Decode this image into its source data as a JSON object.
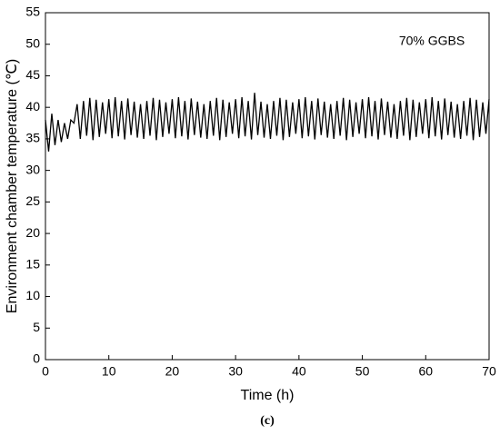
{
  "chart_data": {
    "type": "line",
    "caption": "(c)",
    "annotation": "70% GGBS",
    "xlabel": "Time (h)",
    "ylabel": "Environment chamber temperature (℃)",
    "xlim": [
      0,
      70
    ],
    "xticks": [
      0,
      10,
      20,
      30,
      40,
      50,
      60,
      70
    ],
    "ylim": [
      0,
      55
    ],
    "yticks": [
      0,
      5,
      10,
      15,
      20,
      25,
      30,
      35,
      40,
      45,
      50,
      55
    ],
    "series": [
      {
        "color": "#000000",
        "x": [
          0,
          0.5,
          1,
          1.5,
          2,
          2.5,
          3,
          3.5,
          4,
          4.5,
          5,
          5.5,
          6,
          6.5,
          7,
          7.5,
          8,
          8.5,
          9,
          9.5,
          10,
          10.5,
          11,
          11.5,
          12,
          12.5,
          13,
          13.5,
          14,
          14.5,
          15,
          15.5,
          16,
          16.5,
          17,
          17.5,
          18,
          18.5,
          19,
          19.5,
          20,
          20.5,
          21,
          21.5,
          22,
          22.5,
          23,
          23.5,
          24,
          24.5,
          25,
          25.5,
          26,
          26.5,
          27,
          27.5,
          28,
          28.5,
          29,
          29.5,
          30,
          30.5,
          31,
          31.5,
          32,
          32.5,
          33,
          33.5,
          34,
          34.5,
          35,
          35.5,
          36,
          36.5,
          37,
          37.5,
          38,
          38.5,
          39,
          39.5,
          40,
          40.5,
          41,
          41.5,
          42,
          42.5,
          43,
          43.5,
          44,
          44.5,
          45,
          45.5,
          46,
          46.5,
          47,
          47.5,
          48,
          48.5,
          49,
          49.5,
          50,
          50.5,
          51,
          51.5,
          52,
          52.5,
          53,
          53.5,
          54,
          54.5,
          55,
          55.5,
          56,
          56.5,
          57,
          57.5,
          58,
          58.5,
          59,
          59.5,
          60,
          60.5,
          61,
          61.5,
          62,
          62.5,
          63,
          63.5,
          64,
          64.5,
          65,
          65.5,
          66,
          66.5,
          67,
          67.5,
          68,
          68.5,
          69,
          69.5,
          70
        ],
        "values": [
          38,
          33,
          39,
          34,
          38,
          34.5,
          37.5,
          35,
          38,
          37.5,
          40.5,
          35,
          41,
          35.5,
          41.5,
          34.8,
          41.2,
          35.3,
          40.8,
          35.8,
          41.3,
          35.1,
          41.6,
          35.4,
          41,
          34.9,
          41.4,
          35.6,
          40.9,
          35.2,
          40.5,
          35,
          41,
          35.5,
          41.5,
          34.8,
          41.2,
          35.3,
          40.8,
          35.8,
          41.3,
          35.1,
          41.6,
          35.4,
          41,
          34.9,
          41.4,
          35.6,
          40.9,
          35.2,
          40.5,
          35,
          41,
          35.5,
          41.5,
          34.8,
          41.2,
          35.3,
          40.8,
          35.8,
          41.3,
          35.1,
          41.6,
          35.4,
          41,
          34.9,
          42.3,
          35.6,
          40.9,
          35.2,
          40.5,
          35,
          41,
          35.5,
          41.5,
          34.8,
          41.2,
          35.3,
          40.8,
          35.8,
          41.3,
          35.1,
          41.6,
          35.4,
          41,
          34.9,
          41.4,
          35.6,
          40.9,
          35.2,
          40.5,
          35,
          41,
          35.5,
          41.5,
          34.8,
          41.2,
          35.3,
          40.8,
          35.8,
          41.3,
          35.1,
          41.6,
          35.4,
          41,
          34.9,
          41.4,
          35.6,
          40.9,
          35.2,
          40.5,
          35,
          41,
          35.5,
          41.5,
          34.8,
          41.2,
          35.3,
          40.8,
          35.8,
          41.3,
          35.1,
          41.6,
          35.4,
          41,
          34.9,
          41.4,
          35.6,
          40.9,
          35.2,
          40.5,
          35,
          41,
          35.5,
          41.5,
          34.8,
          41.2,
          35.3,
          40.8,
          35.8,
          41.3
        ]
      }
    ]
  }
}
